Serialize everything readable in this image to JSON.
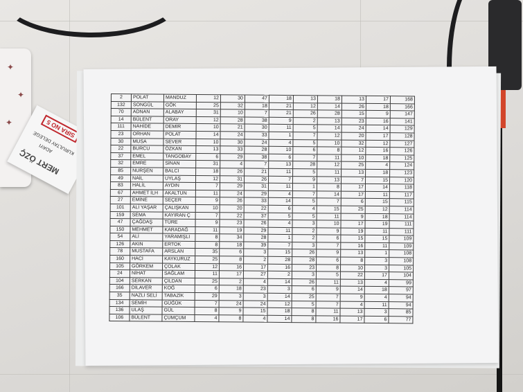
{
  "card": {
    "name": "MERT ÖZÇ",
    "line1": "KURULTAY DELEGE",
    "line2": "ADAYI",
    "badge": "SIRA NO 5"
  },
  "table": {
    "rows": [
      [
        "2",
        "POLAT",
        "MANDUZ",
        "12",
        "30",
        "47",
        "18",
        "13",
        "18",
        "13",
        "17",
        "168"
      ],
      [
        "132",
        "SONGÜL",
        "GÖK",
        "25",
        "32",
        "18",
        "21",
        "12",
        "14",
        "26",
        "18",
        "166"
      ],
      [
        "70",
        "ADNAN",
        "ALABAY",
        "31",
        "10",
        "7",
        "21",
        "26",
        "28",
        "15",
        "9",
        "147"
      ],
      [
        "14",
        "BÜLENT",
        "ORAY",
        "12",
        "28",
        "38",
        "9",
        "2",
        "13",
        "23",
        "16",
        "141"
      ],
      [
        "111",
        "NAHİDE",
        "DEMİR",
        "10",
        "21",
        "30",
        "11",
        "5",
        "14",
        "24",
        "14",
        "129"
      ],
      [
        "23",
        "ORHAN",
        "POLAT",
        "14",
        "24",
        "33",
        "1",
        "7",
        "12",
        "20",
        "17",
        "128"
      ],
      [
        "30",
        "MUSA",
        "SEVER",
        "10",
        "30",
        "24",
        "4",
        "5",
        "10",
        "32",
        "12",
        "127"
      ],
      [
        "22",
        "BURCU",
        "ÖZKAN",
        "13",
        "33",
        "28",
        "10",
        "6",
        "8",
        "12",
        "16",
        "126"
      ],
      [
        "37",
        "EMEL",
        "TANGOBAY",
        "6",
        "29",
        "38",
        "6",
        "7",
        "11",
        "10",
        "18",
        "125"
      ],
      [
        "32",
        "EMRE",
        "SİNAN",
        "31",
        "4",
        "7",
        "13",
        "28",
        "12",
        "25",
        "4",
        "124"
      ],
      [
        "85",
        "NURŞEN",
        "BALCI",
        "18",
        "26",
        "21",
        "11",
        "5",
        "11",
        "13",
        "18",
        "123"
      ],
      [
        "49",
        "NAİL",
        "UYLAŞ",
        "12",
        "31",
        "26",
        "7",
        "9",
        "13",
        "7",
        "15",
        "120"
      ],
      [
        "83",
        "HALİL",
        "AYDIN",
        "7",
        "29",
        "31",
        "11",
        "1",
        "8",
        "17",
        "14",
        "118"
      ],
      [
        "67",
        "AHMET İLH",
        "AKALTUN",
        "11",
        "24",
        "29",
        "4",
        "7",
        "14",
        "17",
        "11",
        "117"
      ],
      [
        "27",
        "EMİNE",
        "SEÇER",
        "9",
        "26",
        "33",
        "14",
        "5",
        "7",
        "6",
        "15",
        "115"
      ],
      [
        "101",
        "ALİ YAŞAR",
        "ÇALIŞKAN",
        "10",
        "20",
        "22",
        "6",
        "4",
        "15",
        "25",
        "12",
        "114"
      ],
      [
        "159",
        "SEMA",
        "KAYIRAN Ç",
        "7",
        "22",
        "37",
        "5",
        "5",
        "11",
        "9",
        "18",
        "114"
      ],
      [
        "47",
        "ÇAĞDAŞ",
        "TÜRE",
        "9",
        "23",
        "26",
        "4",
        "3",
        "10",
        "17",
        "19",
        "111"
      ],
      [
        "150",
        "MEHMET",
        "KARADAĞ",
        "11",
        "19",
        "29",
        "11",
        "2",
        "9",
        "19",
        "11",
        "111"
      ],
      [
        "54",
        "ALİ",
        "YARAMIŞLI",
        "8",
        "34",
        "28",
        "1",
        "2",
        "6",
        "15",
        "15",
        "109"
      ],
      [
        "126",
        "AKIN",
        "ERTOK",
        "8",
        "18",
        "39",
        "7",
        "3",
        "7",
        "16",
        "11",
        "109"
      ],
      [
        "78",
        "MUSTAFA",
        "ARSLAN",
        "35",
        "6",
        "3",
        "15",
        "26",
        "9",
        "13",
        "1",
        "108"
      ],
      [
        "160",
        "HACİ",
        "KAYKURUZ",
        "25",
        "8",
        "2",
        "28",
        "28",
        "6",
        "8",
        "3",
        "108"
      ],
      [
        "105",
        "GÖRKEM",
        "ÇOLAK",
        "12",
        "16",
        "17",
        "16",
        "23",
        "8",
        "10",
        "3",
        "105"
      ],
      [
        "24",
        "NİHAT",
        "SAĞLAM",
        "11",
        "17",
        "27",
        "2",
        "3",
        "5",
        "22",
        "17",
        "104"
      ],
      [
        "104",
        "SERKAN",
        "ÇILDAN",
        "25",
        "2",
        "4",
        "14",
        "26",
        "11",
        "13",
        "4",
        "99"
      ],
      [
        "166",
        "DİLAVER",
        "KOĞ",
        "6",
        "18",
        "23",
        "3",
        "6",
        "9",
        "14",
        "18",
        "97"
      ],
      [
        "35",
        "NAZLI SELİ",
        "TABAZİK",
        "29",
        "3",
        "3",
        "14",
        "25",
        "7",
        "9",
        "4",
        "94"
      ],
      [
        "134",
        "SEMİH",
        "GÜĞÜK",
        "7",
        "24",
        "24",
        "12",
        "5",
        "7",
        "4",
        "11",
        "94"
      ],
      [
        "136",
        "ULAŞ",
        "GÜL",
        "8",
        "9",
        "15",
        "18",
        "8",
        "11",
        "13",
        "3",
        "85"
      ],
      [
        "106",
        "BÜLENT",
        "ÇUMÇUM",
        "4",
        "8",
        "4",
        "14",
        "8",
        "16",
        "17",
        "6",
        "77"
      ]
    ]
  }
}
